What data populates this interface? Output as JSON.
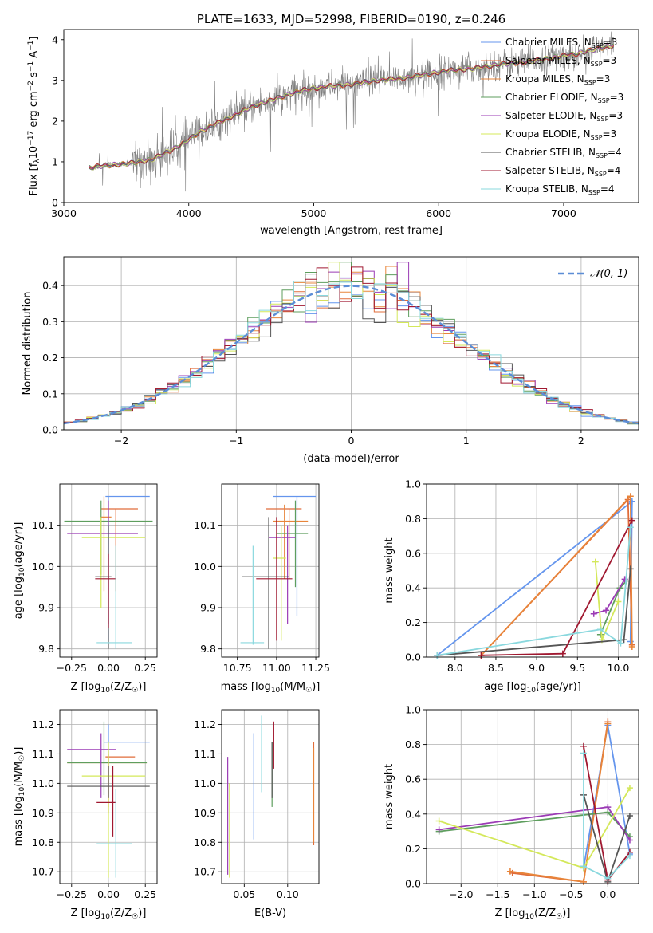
{
  "legend_series": [
    {
      "name": "Chabrier MILES, N",
      "sub": "SSP",
      "suffix": "=3",
      "color": "#6495ED"
    },
    {
      "name": "Salpeter MILES, N",
      "sub": "SSP",
      "suffix": "=3",
      "color": "#E06C3A"
    },
    {
      "name": "Kroupa MILES, N",
      "sub": "SSP",
      "suffix": "=3",
      "color": "#E8853A"
    },
    {
      "name": "Chabrier ELODIE, N",
      "sub": "SSP",
      "suffix": "=3",
      "color": "#5E9E5E"
    },
    {
      "name": "Salpeter ELODIE, N",
      "sub": "SSP",
      "suffix": "=3",
      "color": "#9B3BB5"
    },
    {
      "name": "Kroupa ELODIE, N",
      "sub": "SSP",
      "suffix": "=3",
      "color": "#D4E85A"
    },
    {
      "name": "Chabrier STELIB, N",
      "sub": "SSP",
      "suffix": "=4",
      "color": "#555555"
    },
    {
      "name": "Salpeter STELIB, N",
      "sub": "SSP",
      "suffix": "=4",
      "color": "#A01830"
    },
    {
      "name": "Kroupa STELIB, N",
      "sub": "SSP",
      "suffix": "=4",
      "color": "#8AD8DE"
    }
  ],
  "chart_data": [
    {
      "type": "line",
      "title": "PLATE=1633, MJD=52998, FIBERID=0190, z=0.246",
      "xlabel": "wavelength [Angstrom, rest frame]",
      "ylabel_main": "Flux [f",
      "ylabel_sub": "λ",
      "ylabel_rest": "10",
      "ylabel_exp": "−17",
      "ylabel_units": " erg cm",
      "ylabel_exp2": "−2",
      "ylabel_s": " s",
      "ylabel_exp3": "−1",
      "ylabel_a": " A",
      "ylabel_exp4": "−1",
      "ylabel_close": "]",
      "xlim": [
        3000,
        7600
      ],
      "ylim": [
        0,
        4.25
      ],
      "xticks": [
        "3000",
        "4000",
        "5000",
        "6000",
        "7000"
      ],
      "yticks": [
        "0",
        "1",
        "2",
        "3",
        "4"
      ],
      "continuum": {
        "x": [
          3200,
          3300,
          3500,
          3700,
          3900,
          4100,
          4300,
          4500,
          4700,
          4900,
          5100,
          5300,
          5500,
          5700,
          5900,
          6100,
          6300,
          6500,
          6700,
          6900,
          7100,
          7300,
          7400
        ],
        "y": [
          0.85,
          0.9,
          0.95,
          1.05,
          1.35,
          1.75,
          2.05,
          2.35,
          2.55,
          2.75,
          2.85,
          2.9,
          3.0,
          3.05,
          3.15,
          3.25,
          3.3,
          3.4,
          3.45,
          3.55,
          3.65,
          3.8,
          3.85
        ]
      }
    },
    {
      "type": "bar",
      "xlabel": "(data-model)/error",
      "ylabel": "Normed distribution",
      "legend": "𝒩(0, 1)",
      "xlim": [
        -2.5,
        2.5
      ],
      "ylim": [
        0,
        0.48
      ],
      "xticks": [
        "−2",
        "−1",
        "0",
        "1",
        "2"
      ],
      "yticks": [
        "0.0",
        "0.1",
        "0.2",
        "0.3",
        "0.4"
      ],
      "bin_width": 0.1
    },
    {
      "type": "scatter",
      "xlabel": "Z [log",
      "xlabel_sub": "10",
      "xlabel_rest": "(Z/Z",
      "xlabel_sun": "☉",
      "xlabel_close": ")]",
      "ylabel": "age  [log",
      "ylabel_sub": "10",
      "ylabel_rest": "(age/yr)]",
      "xlim": [
        -0.33,
        0.33
      ],
      "ylim": [
        9.78,
        10.2
      ],
      "xticks": [
        "−0.25",
        "0.00",
        "0.25"
      ],
      "yticks": [
        "9.8",
        "9.9",
        "10.0",
        "10.1"
      ],
      "points": [
        {
          "x": 0.0,
          "y": 10.17,
          "xlo": -0.02,
          "xhi": 0.28,
          "ylo": 9.82,
          "yhi": 10.17
        },
        {
          "x": 0.05,
          "y": 10.14,
          "xlo": -0.05,
          "xhi": 0.2,
          "ylo": 9.94,
          "yhi": 10.14
        },
        {
          "x": -0.03,
          "y": 10.12,
          "xlo": -0.05,
          "xhi": 0.02,
          "ylo": 9.94,
          "yhi": 10.17
        },
        {
          "x": -0.05,
          "y": 10.11,
          "xlo": -0.3,
          "xhi": 0.3,
          "ylo": 9.98,
          "yhi": 10.16
        },
        {
          "x": 0.0,
          "y": 10.08,
          "xlo": -0.28,
          "xhi": 0.2,
          "ylo": 9.86,
          "yhi": 10.16
        },
        {
          "x": -0.05,
          "y": 10.07,
          "xlo": -0.18,
          "xhi": 0.25,
          "ylo": 9.9,
          "yhi": 10.12
        },
        {
          "x": 0.0,
          "y": 9.975,
          "xlo": -0.09,
          "xhi": 0.02,
          "ylo": 9.8,
          "yhi": 10.1
        },
        {
          "x": 0.0,
          "y": 9.97,
          "xlo": -0.09,
          "xhi": 0.05,
          "ylo": 9.85,
          "yhi": 10.03
        },
        {
          "x": 0.05,
          "y": 9.815,
          "xlo": -0.08,
          "xhi": 0.16,
          "ylo": 9.8,
          "yhi": 10.05
        }
      ]
    },
    {
      "type": "scatter",
      "xlabel": "mass [log",
      "xlabel_sub": "10",
      "xlabel_rest": "(M/M",
      "xlabel_sun": "☉",
      "xlabel_close": ")]",
      "xlim": [
        10.65,
        11.27
      ],
      "ylim": [
        9.78,
        10.2
      ],
      "xticks": [
        "10.75",
        "11.00",
        "11.25"
      ],
      "yticks": [
        "9.8",
        "9.9",
        "10.0",
        "10.1"
      ],
      "points": [
        {
          "x": 11.13,
          "y": 10.17,
          "xlo": 10.98,
          "xhi": 11.25,
          "ylo": 9.88,
          "yhi": 10.17
        },
        {
          "x": 11.08,
          "y": 10.14,
          "xlo": 10.93,
          "xhi": 11.16,
          "ylo": 9.97,
          "yhi": 10.14
        },
        {
          "x": 11.05,
          "y": 10.11,
          "xlo": 10.98,
          "xhi": 11.2,
          "ylo": 9.97,
          "yhi": 10.15
        },
        {
          "x": 11.12,
          "y": 10.08,
          "xlo": 11.0,
          "xhi": 11.2,
          "ylo": 9.95,
          "yhi": 10.16
        },
        {
          "x": 11.07,
          "y": 10.07,
          "xlo": 10.95,
          "xhi": 11.12,
          "ylo": 9.86,
          "yhi": 10.1
        },
        {
          "x": 11.03,
          "y": 10.02,
          "xlo": 10.98,
          "xhi": 11.06,
          "ylo": 9.82,
          "yhi": 10.1
        },
        {
          "x": 10.95,
          "y": 9.975,
          "xlo": 10.78,
          "xhi": 11.08,
          "ylo": 9.8,
          "yhi": 10.12
        },
        {
          "x": 11.0,
          "y": 9.97,
          "xlo": 10.87,
          "xhi": 11.1,
          "ylo": 9.82,
          "yhi": 10.12
        },
        {
          "x": 10.85,
          "y": 9.815,
          "xlo": 10.77,
          "xhi": 10.92,
          "ylo": 9.81,
          "yhi": 10.05
        }
      ]
    },
    {
      "type": "line",
      "xlabel": "age  [log",
      "xlabel_sub": "10",
      "xlabel_rest": "(age/yr)]",
      "ylabel": "mass weight",
      "xlim": [
        7.65,
        10.25
      ],
      "ylim": [
        0,
        1
      ],
      "xticks": [
        "8.0",
        "8.5",
        "9.0",
        "9.5",
        "10.0"
      ],
      "yticks": [
        "0.0",
        "0.2",
        "0.4",
        "0.6",
        "0.8",
        "1.0"
      ],
      "series": [
        {
          "x": [
            7.78,
            10.17,
            10.15
          ],
          "y": [
            0.01,
            0.9,
            0.09
          ]
        },
        {
          "x": [
            8.32,
            10.12,
            10.17
          ],
          "y": [
            0.01,
            0.91,
            0.07
          ]
        },
        {
          "x": [
            8.32,
            10.15,
            10.17
          ],
          "y": [
            0.01,
            0.93,
            0.06
          ]
        },
        {
          "x": [
            9.78,
            10.02,
            10.1
          ],
          "y": [
            0.13,
            0.4,
            0.44
          ]
        },
        {
          "x": [
            9.7,
            9.85,
            10.08
          ],
          "y": [
            0.25,
            0.27,
            0.45
          ]
        },
        {
          "x": [
            9.72,
            9.8,
            10.0
          ],
          "y": [
            0.55,
            0.1,
            0.32
          ]
        },
        {
          "x": [
            7.78,
            10.07,
            10.15
          ],
          "y": [
            0.01,
            0.1,
            0.51
          ]
        },
        {
          "x": [
            8.32,
            9.32,
            10.17
          ],
          "y": [
            0.01,
            0.02,
            0.79
          ]
        },
        {
          "x": [
            7.78,
            9.78,
            10.03,
            10.15
          ],
          "y": [
            0.01,
            0.16,
            0.08,
            0.75
          ]
        }
      ]
    },
    {
      "type": "scatter",
      "xlabel": "Z [log",
      "xlabel_sub": "10",
      "xlabel_rest": "(Z/Z",
      "xlabel_sun": "☉",
      "xlabel_close": ")]",
      "ylabel": "mass [log",
      "ylabel_sub": "10",
      "ylabel_rest": "(M/M",
      "ylabel_sun": "☉",
      "ylabel_close": ")]",
      "xlim": [
        -0.33,
        0.33
      ],
      "ylim": [
        10.66,
        11.25
      ],
      "xticks": [
        "−0.25",
        "0.00",
        "0.25"
      ],
      "yticks": [
        "10.7",
        "10.8",
        "10.9",
        "11.0",
        "11.1",
        "11.2"
      ],
      "points": [
        {
          "x": 0.0,
          "y": 11.14,
          "xlo": -0.03,
          "xhi": 0.28,
          "ylo": 10.95,
          "yhi": 11.2
        },
        {
          "x": 0.0,
          "y": 11.09,
          "xlo": -0.02,
          "xhi": 0.18,
          "ylo": 10.9,
          "yhi": 11.1
        },
        {
          "x": 0.0,
          "y": 11.07,
          "xlo": -0.28,
          "xhi": 0.26,
          "ylo": 10.92,
          "yhi": 11.11
        },
        {
          "x": -0.03,
          "y": 11.07,
          "xlo": -0.28,
          "xhi": 0.26,
          "ylo": 10.96,
          "yhi": 11.21
        },
        {
          "x": -0.05,
          "y": 11.115,
          "xlo": -0.28,
          "xhi": 0.05,
          "ylo": 10.95,
          "yhi": 11.17
        },
        {
          "x": 0.0,
          "y": 11.025,
          "xlo": -0.18,
          "xhi": 0.25,
          "ylo": 10.68,
          "yhi": 11.14
        },
        {
          "x": 0.0,
          "y": 10.99,
          "xlo": -0.28,
          "xhi": 0.28,
          "ylo": 10.95,
          "yhi": 11.06
        },
        {
          "x": 0.03,
          "y": 10.935,
          "xlo": -0.08,
          "xhi": 0.05,
          "ylo": 10.82,
          "yhi": 11.06
        },
        {
          "x": 0.05,
          "y": 10.795,
          "xlo": -0.08,
          "xhi": 0.16,
          "ylo": 10.68,
          "yhi": 10.98
        }
      ]
    },
    {
      "type": "scatter",
      "xlabel": "E(B-V)",
      "xlim": [
        0.024,
        0.136
      ],
      "ylim": [
        10.66,
        11.25
      ],
      "xticks": [
        "0.05",
        "0.10"
      ],
      "yticks": [
        "10.7",
        "10.8",
        "10.9",
        "11.0",
        "11.1",
        "11.2"
      ],
      "points": [
        {
          "x": 0.061,
          "y": 11.0,
          "ylo": 10.81,
          "yhi": 11.17
        },
        {
          "x": 0.13,
          "y": 10.96,
          "ylo": 10.79,
          "yhi": 11.14
        },
        {
          "x": 0.13,
          "y": 11.0,
          "ylo": 10.8,
          "yhi": 11.12
        },
        {
          "x": 0.082,
          "y": 11.05,
          "ylo": 10.92,
          "yhi": 11.14
        },
        {
          "x": 0.031,
          "y": 10.9,
          "ylo": 10.69,
          "yhi": 11.09
        },
        {
          "x": 0.033,
          "y": 10.85,
          "ylo": 10.68,
          "yhi": 11.0
        },
        {
          "x": 0.082,
          "y": 11.1,
          "ylo": 10.95,
          "yhi": 11.14
        },
        {
          "x": 0.084,
          "y": 11.1,
          "ylo": 11.05,
          "yhi": 11.21
        },
        {
          "x": 0.07,
          "y": 11.1,
          "ylo": 10.97,
          "yhi": 11.23
        }
      ]
    },
    {
      "type": "line",
      "xlabel": "Z [log",
      "xlabel_sub": "10",
      "xlabel_rest": "(Z/Z",
      "xlabel_sun": "☉",
      "xlabel_close": ")]",
      "ylabel": "mass weight",
      "xlim": [
        -2.47,
        0.42
      ],
      "ylim": [
        0,
        1
      ],
      "xticks": [
        "−2.0",
        "−1.5",
        "−1.0",
        "−0.5",
        "0.0"
      ],
      "yticks": [
        "0.0",
        "0.2",
        "0.4",
        "0.6",
        "0.8",
        "1.0"
      ],
      "series": [
        {
          "x": [
            -0.33,
            0.0,
            0.3
          ],
          "y": [
            0.09,
            0.91,
            0.17
          ]
        },
        {
          "x": [
            -1.3,
            -0.33,
            0.0
          ],
          "y": [
            0.06,
            0.01,
            0.93
          ]
        },
        {
          "x": [
            -1.33,
            -0.33,
            0.0
          ],
          "y": [
            0.07,
            0.01,
            0.92
          ]
        },
        {
          "x": [
            -2.3,
            0.0,
            0.3
          ],
          "y": [
            0.3,
            0.41,
            0.27
          ]
        },
        {
          "x": [
            -2.3,
            0.0,
            0.3
          ],
          "y": [
            0.31,
            0.44,
            0.25
          ]
        },
        {
          "x": [
            -2.3,
            -0.33,
            0.3
          ],
          "y": [
            0.36,
            0.09,
            0.55
          ]
        },
        {
          "x": [
            -0.33,
            0.0,
            0.3
          ],
          "y": [
            0.51,
            0.01,
            0.39
          ]
        },
        {
          "x": [
            -0.33,
            0.0,
            0.3
          ],
          "y": [
            0.79,
            0.02,
            0.18
          ]
        },
        {
          "x": [
            -0.33,
            -0.33,
            0.0,
            0.3
          ],
          "y": [
            0.75,
            0.1,
            0.03,
            0.16
          ]
        }
      ]
    }
  ]
}
